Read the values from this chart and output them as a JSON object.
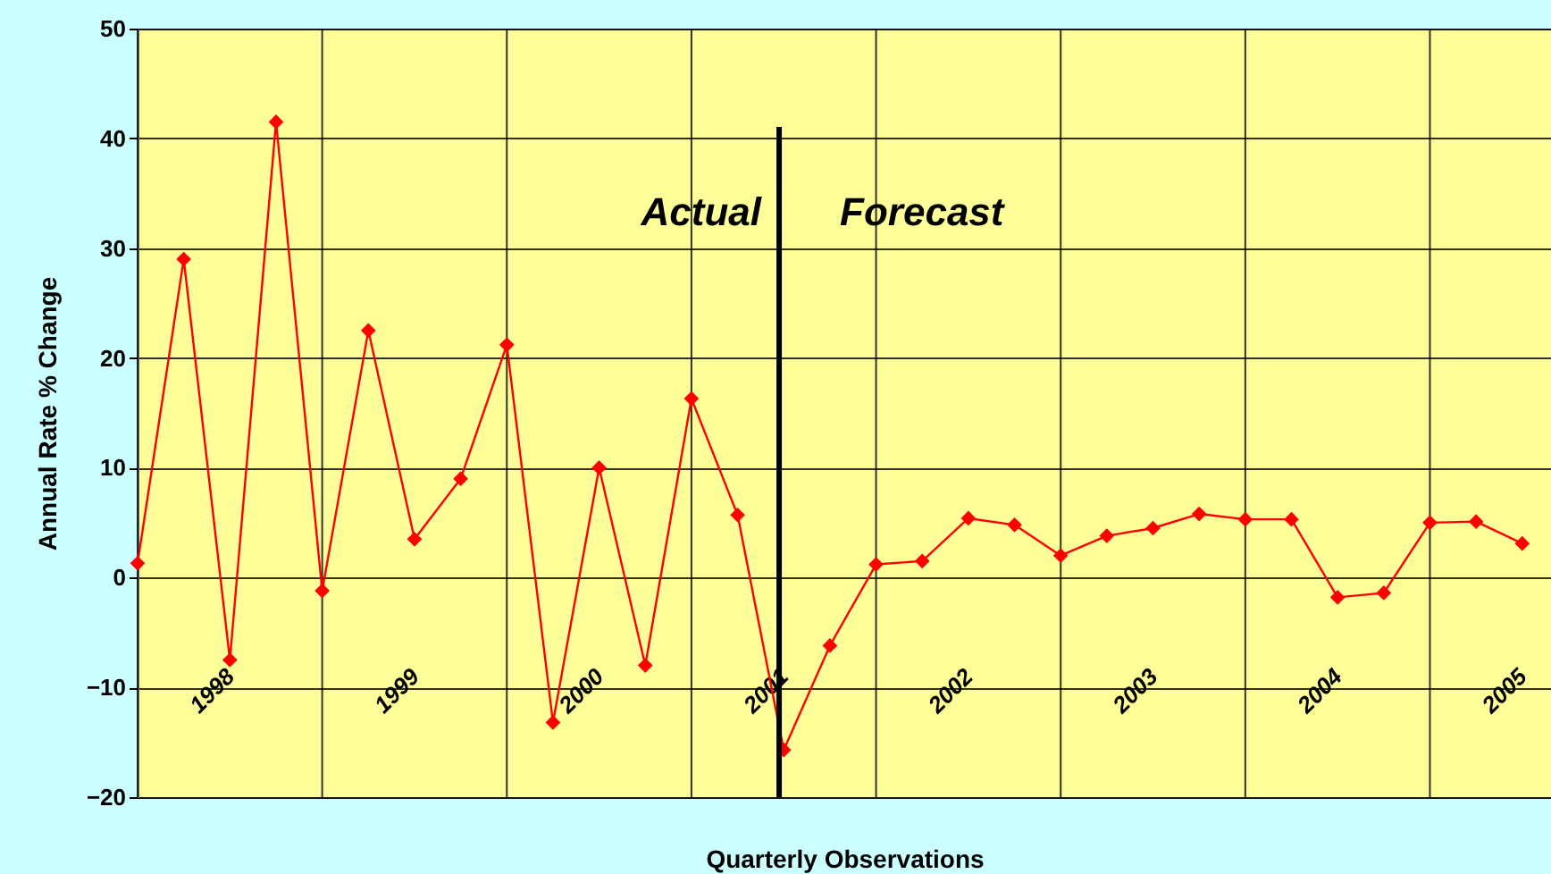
{
  "chart_data": {
    "type": "line",
    "xlabel": "Quarterly Observations",
    "ylabel": "Annual Rate % Change",
    "categories": [
      null,
      null,
      "1998",
      null,
      null,
      null,
      "1999",
      null,
      null,
      null,
      "2000",
      null,
      null,
      null,
      "2001",
      null,
      null,
      null,
      "2002",
      null,
      null,
      null,
      "2003",
      null,
      null,
      null,
      "2004",
      null,
      null,
      null,
      "2005"
    ],
    "series": [
      {
        "color": "#ff0000",
        "values": [
          1.3,
          29,
          -7.5,
          41.5,
          -1.2,
          22.5,
          3.5,
          9,
          21.2,
          -13.2,
          10,
          -8,
          16.3,
          5.7,
          -15.7,
          -6.2,
          1.2,
          1.5,
          5.4,
          4.8,
          2.0,
          3.8,
          4.5,
          5.8,
          5.3,
          5.3,
          -1.8,
          -1.4,
          5.0,
          5.1,
          3.1
        ]
      }
    ],
    "ylim": [
      -20,
      50
    ],
    "yticks": [
      -20,
      -10,
      0,
      10,
      20,
      30,
      40,
      50
    ],
    "grid": true,
    "marker": "diamond",
    "line_style": "solid",
    "annotations": [
      "Actual",
      "Forecast"
    ]
  }
}
